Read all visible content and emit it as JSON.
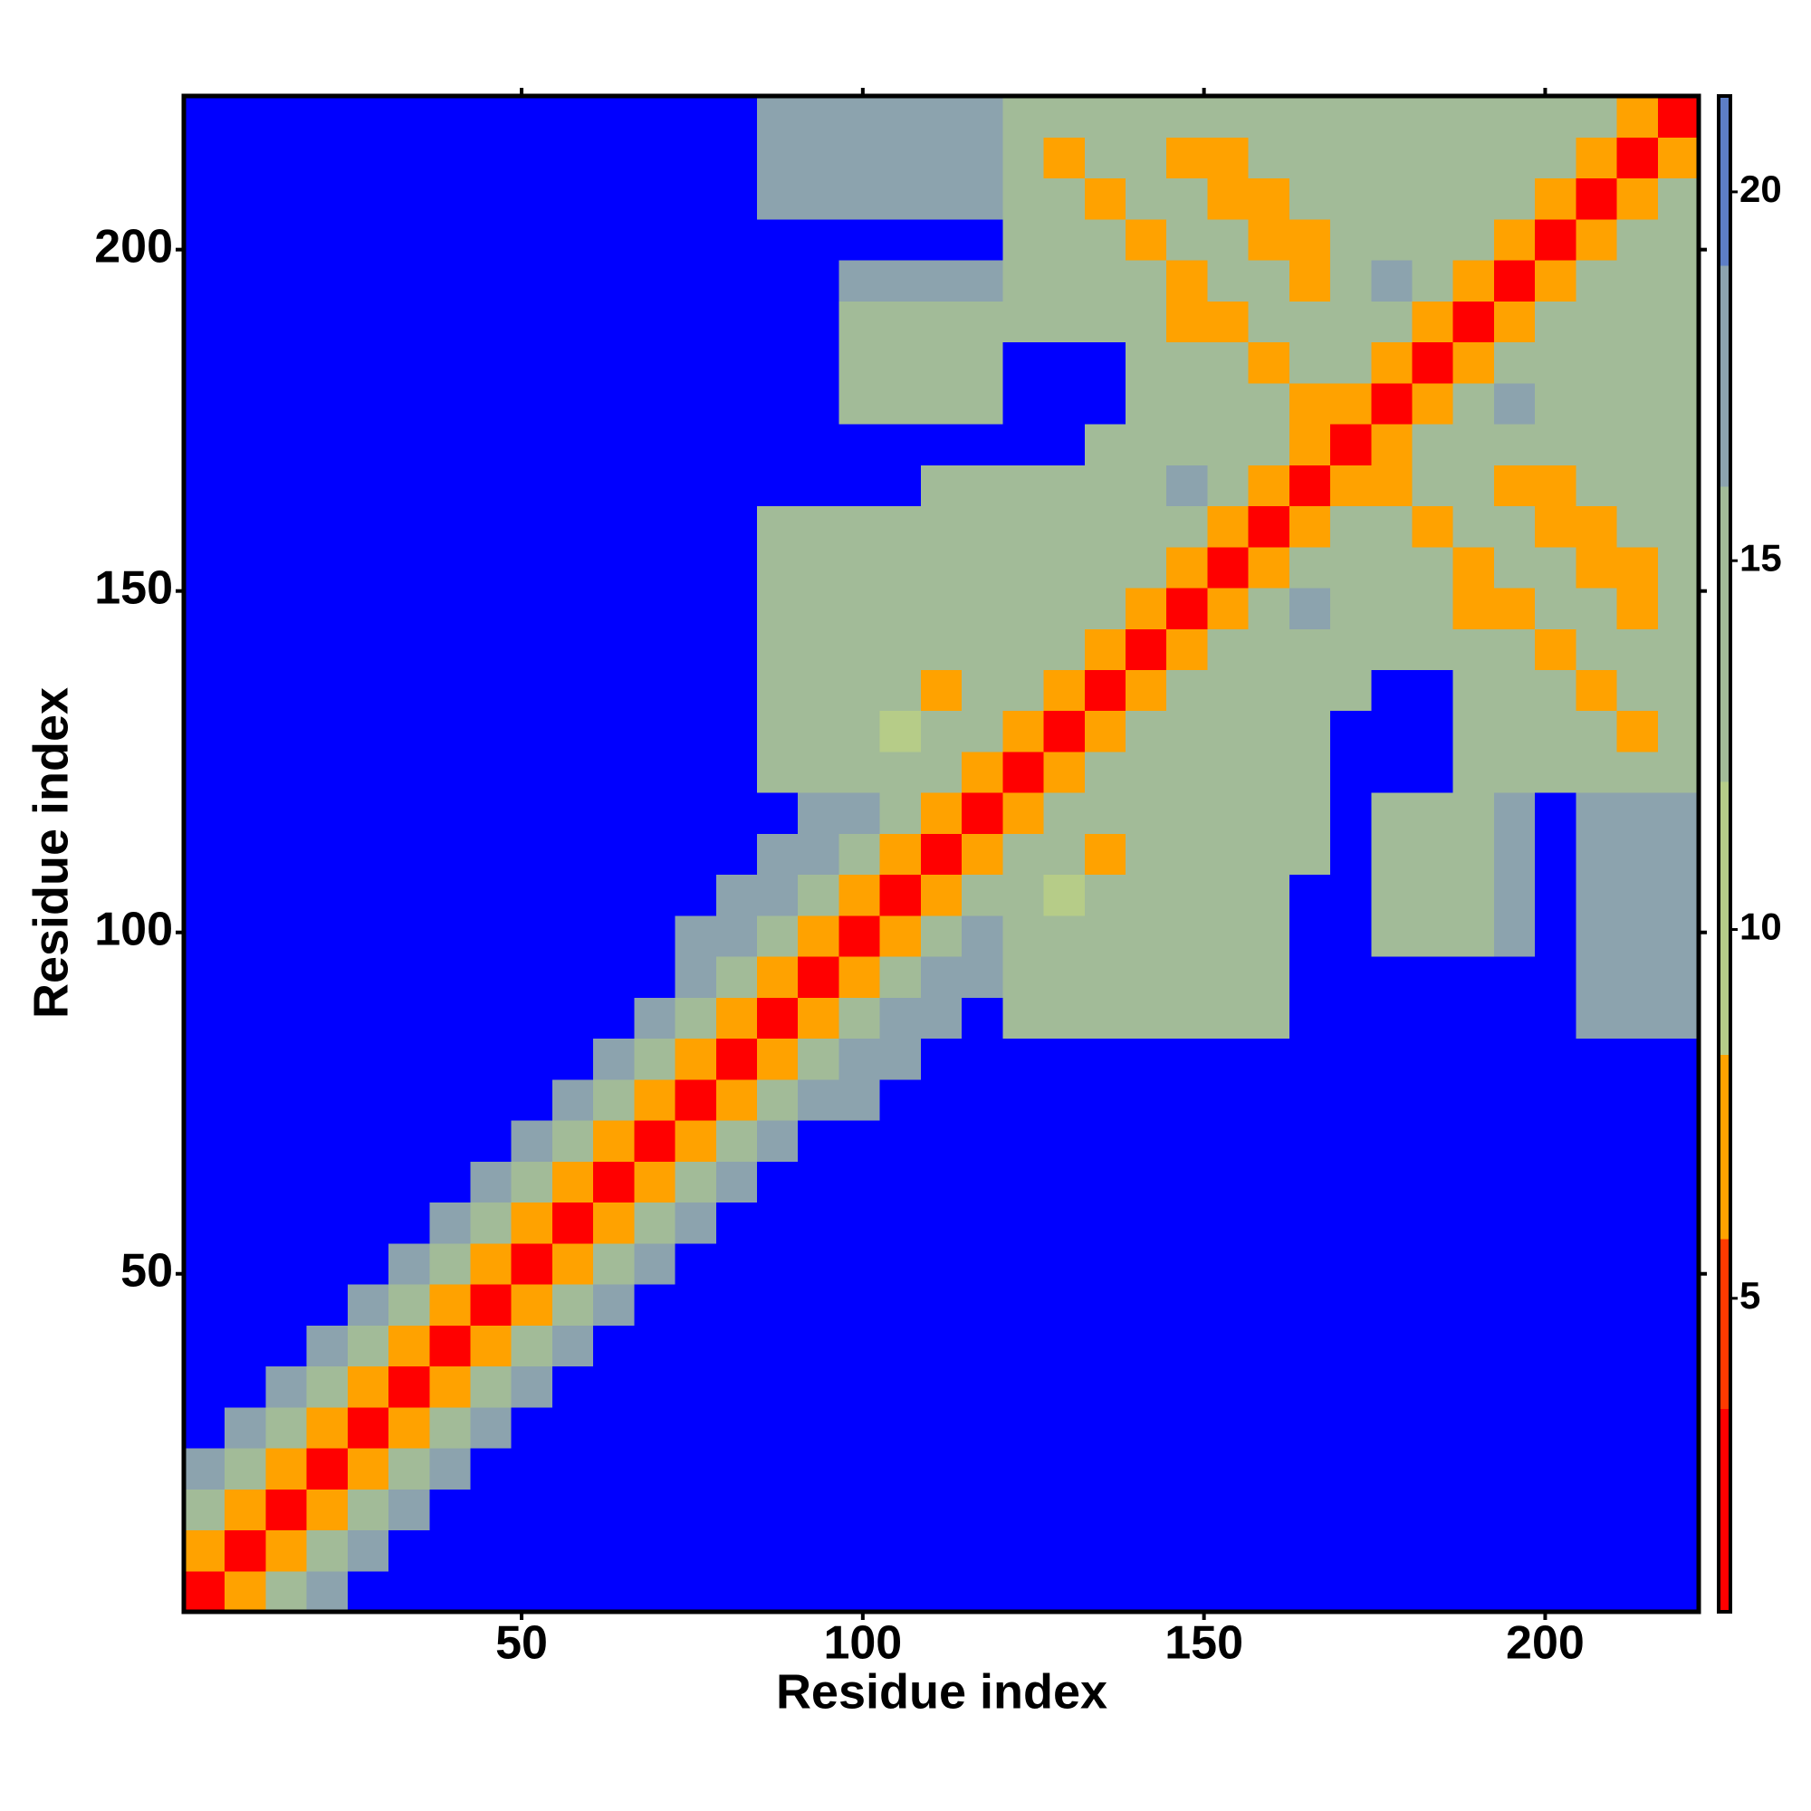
{
  "chart_data": {
    "type": "heatmap",
    "xlabel": "Residue index",
    "ylabel": "Residue index",
    "xlim": [
      0.5,
      222.5
    ],
    "ylim": [
      0.5,
      222.5
    ],
    "xticks": [
      50,
      100,
      150,
      200
    ],
    "yticks": [
      50,
      100,
      150,
      200
    ],
    "zlim": [
      0.75,
      21.3
    ],
    "zticks": [
      5,
      10,
      15,
      20
    ],
    "color_breaks": [
      0.75,
      3.5,
      5.8,
      8.3,
      12,
      16,
      19,
      21.3
    ],
    "colors": [
      "#ff0000",
      "#ff3a00",
      "#ffa200",
      "#b6cc88",
      "#a2bb98",
      "#8ca3ae",
      "#5d7ec6"
    ],
    "over_color": "#0000ff",
    "bin_edges": [
      0.5,
      6.5,
      12.5,
      18.5,
      24.5,
      30.5,
      36.5,
      42.5,
      48.5,
      54.5,
      60.5,
      66.5,
      72.5,
      78.5,
      84.5,
      90.5,
      96.5,
      102.5,
      108.5,
      114.5,
      120.5,
      126.5,
      132.5,
      138.5,
      144.5,
      150.5,
      156.5,
      162.5,
      168.5,
      174.5,
      180.5,
      186.5,
      192.5,
      198.5,
      204.5,
      210.5,
      216.5,
      222.5
    ],
    "z": [
      [
        2,
        7,
        12,
        18,
        25,
        25,
        25,
        25,
        25,
        25,
        25,
        25,
        25,
        25,
        25,
        25,
        25,
        25,
        25,
        25,
        25,
        25,
        25,
        25,
        25,
        25,
        25,
        25,
        25,
        25,
        25,
        25,
        25,
        25,
        25,
        25,
        25
      ],
      [
        7,
        2,
        7,
        12,
        18,
        25,
        25,
        25,
        25,
        25,
        25,
        25,
        25,
        25,
        25,
        25,
        25,
        25,
        25,
        25,
        25,
        25,
        25,
        25,
        25,
        25,
        25,
        25,
        25,
        25,
        25,
        25,
        25,
        25,
        25,
        25,
        25
      ],
      [
        12,
        7,
        2,
        7,
        12,
        18,
        25,
        25,
        25,
        25,
        25,
        25,
        25,
        25,
        25,
        25,
        25,
        25,
        25,
        25,
        25,
        25,
        25,
        25,
        25,
        25,
        25,
        25,
        25,
        25,
        25,
        25,
        25,
        25,
        25,
        25,
        25
      ],
      [
        18,
        12,
        7,
        2,
        7,
        12,
        18,
        25,
        25,
        25,
        25,
        25,
        25,
        25,
        25,
        25,
        25,
        25,
        25,
        25,
        25,
        25,
        25,
        25,
        25,
        25,
        25,
        25,
        25,
        25,
        25,
        25,
        25,
        25,
        25,
        25,
        25
      ],
      [
        25,
        18,
        12,
        7,
        2,
        7,
        12,
        18,
        25,
        25,
        25,
        25,
        25,
        25,
        25,
        25,
        25,
        25,
        25,
        25,
        25,
        25,
        25,
        25,
        25,
        25,
        25,
        25,
        25,
        25,
        25,
        25,
        25,
        25,
        25,
        25,
        25
      ],
      [
        25,
        25,
        18,
        12,
        7,
        2,
        7,
        12,
        18,
        25,
        25,
        25,
        25,
        25,
        25,
        25,
        25,
        25,
        25,
        25,
        25,
        25,
        25,
        25,
        25,
        25,
        25,
        25,
        25,
        25,
        25,
        25,
        25,
        25,
        25,
        25,
        25
      ],
      [
        25,
        25,
        25,
        18,
        12,
        7,
        2,
        7,
        12,
        18,
        25,
        25,
        25,
        25,
        25,
        25,
        25,
        25,
        25,
        25,
        25,
        25,
        25,
        25,
        25,
        25,
        25,
        25,
        25,
        25,
        25,
        25,
        25,
        25,
        25,
        25,
        25
      ],
      [
        25,
        25,
        25,
        25,
        18,
        12,
        7,
        2,
        7,
        12,
        18,
        25,
        25,
        25,
        25,
        25,
        25,
        25,
        25,
        25,
        25,
        25,
        25,
        25,
        25,
        25,
        25,
        25,
        25,
        25,
        25,
        25,
        25,
        25,
        25,
        25,
        25
      ],
      [
        25,
        25,
        25,
        25,
        25,
        18,
        12,
        7,
        2,
        7,
        12,
        18,
        25,
        25,
        25,
        25,
        25,
        25,
        25,
        25,
        25,
        25,
        25,
        25,
        25,
        25,
        25,
        25,
        25,
        25,
        25,
        25,
        25,
        25,
        25,
        25,
        25
      ],
      [
        25,
        25,
        25,
        25,
        25,
        25,
        18,
        12,
        7,
        2,
        7,
        12,
        18,
        25,
        25,
        25,
        25,
        25,
        25,
        25,
        25,
        25,
        25,
        25,
        25,
        25,
        25,
        25,
        25,
        25,
        25,
        25,
        25,
        25,
        25,
        25,
        25
      ],
      [
        25,
        25,
        25,
        25,
        25,
        25,
        25,
        18,
        12,
        7,
        2,
        7,
        12,
        18,
        25,
        25,
        25,
        25,
        25,
        25,
        25,
        25,
        25,
        25,
        25,
        25,
        25,
        25,
        25,
        25,
        25,
        25,
        25,
        25,
        25,
        25,
        25
      ],
      [
        25,
        25,
        25,
        25,
        25,
        25,
        25,
        25,
        18,
        12,
        7,
        2,
        7,
        12,
        18,
        25,
        25,
        25,
        25,
        25,
        25,
        25,
        25,
        25,
        25,
        25,
        25,
        25,
        25,
        25,
        25,
        25,
        25,
        25,
        25,
        25,
        25
      ],
      [
        25,
        25,
        25,
        25,
        25,
        25,
        25,
        25,
        25,
        18,
        12,
        7,
        2,
        7,
        12,
        18,
        16,
        25,
        25,
        25,
        25,
        25,
        25,
        25,
        25,
        25,
        25,
        25,
        25,
        25,
        25,
        25,
        25,
        25,
        25,
        25,
        25
      ],
      [
        25,
        25,
        25,
        25,
        25,
        25,
        25,
        25,
        25,
        25,
        18,
        12,
        7,
        2,
        7,
        12,
        18,
        16,
        25,
        25,
        25,
        25,
        25,
        25,
        25,
        25,
        25,
        25,
        25,
        25,
        25,
        25,
        25,
        25,
        25,
        25,
        25
      ],
      [
        25,
        25,
        25,
        25,
        25,
        25,
        25,
        25,
        25,
        25,
        25,
        18,
        12,
        7,
        2,
        7,
        12,
        18,
        16,
        25,
        12,
        12,
        12,
        12,
        15,
        15,
        15,
        25,
        25,
        25,
        25,
        25,
        25,
        25,
        16,
        16,
        16
      ],
      [
        25,
        25,
        25,
        25,
        25,
        25,
        25,
        25,
        25,
        25,
        25,
        25,
        18,
        12,
        7,
        2,
        7,
        12,
        18,
        16,
        12,
        12,
        12,
        12,
        13,
        13,
        13,
        25,
        25,
        25,
        25,
        25,
        25,
        25,
        16,
        16,
        16
      ],
      [
        25,
        25,
        25,
        25,
        25,
        25,
        25,
        25,
        25,
        25,
        25,
        25,
        16,
        18,
        12,
        7,
        2,
        7,
        12,
        18,
        12,
        12,
        12,
        12,
        13,
        13,
        13,
        25,
        25,
        14,
        14,
        14,
        16,
        25,
        16,
        16,
        16
      ],
      [
        25,
        25,
        25,
        25,
        25,
        25,
        25,
        25,
        25,
        25,
        25,
        25,
        25,
        16,
        18,
        12,
        7,
        2,
        7,
        12,
        12,
        9,
        12,
        12,
        13,
        13,
        13,
        25,
        25,
        14,
        14,
        14,
        16,
        25,
        16,
        16,
        16
      ],
      [
        25,
        25,
        25,
        25,
        25,
        25,
        25,
        25,
        25,
        25,
        25,
        25,
        25,
        25,
        16,
        18,
        12,
        7,
        2,
        7,
        12,
        12,
        8,
        12,
        13,
        13,
        13,
        14,
        25,
        14,
        14,
        14,
        16,
        25,
        16,
        16,
        16
      ],
      [
        25,
        25,
        25,
        25,
        25,
        25,
        25,
        25,
        25,
        25,
        25,
        25,
        25,
        25,
        25,
        16,
        18,
        12,
        7,
        2,
        7,
        12,
        12,
        12,
        13,
        13,
        13,
        14,
        25,
        14,
        14,
        14,
        16,
        25,
        16,
        16,
        16
      ],
      [
        25,
        25,
        25,
        25,
        25,
        25,
        25,
        25,
        25,
        25,
        25,
        25,
        25,
        25,
        12,
        12,
        12,
        12,
        12,
        7,
        2,
        7,
        12,
        12,
        14,
        14,
        14,
        14,
        25,
        25,
        25,
        13,
        13,
        13,
        13,
        13,
        13
      ],
      [
        25,
        25,
        25,
        25,
        25,
        25,
        25,
        25,
        25,
        25,
        25,
        25,
        25,
        25,
        12,
        12,
        12,
        9,
        12,
        12,
        7,
        2,
        7,
        12,
        14,
        14,
        14,
        14,
        25,
        25,
        25,
        13,
        13,
        13,
        13,
        7,
        13
      ],
      [
        25,
        25,
        25,
        25,
        25,
        25,
        25,
        25,
        25,
        25,
        25,
        25,
        25,
        25,
        12,
        12,
        12,
        12,
        8,
        12,
        12,
        7,
        2,
        7,
        12,
        14,
        14,
        14,
        14,
        25,
        25,
        13,
        13,
        13,
        7,
        13,
        13
      ],
      [
        25,
        25,
        25,
        25,
        25,
        25,
        25,
        25,
        25,
        25,
        25,
        25,
        25,
        25,
        12,
        12,
        12,
        12,
        12,
        12,
        12,
        12,
        7,
        2,
        7,
        12,
        14,
        14,
        12,
        12,
        12,
        12,
        12,
        7,
        13,
        13,
        13
      ],
      [
        25,
        25,
        25,
        25,
        25,
        25,
        25,
        25,
        25,
        25,
        25,
        25,
        25,
        25,
        15,
        13,
        13,
        13,
        13,
        13,
        14,
        14,
        12,
        7,
        2,
        7,
        14,
        16,
        12,
        12,
        12,
        7,
        7,
        12,
        12,
        7,
        12
      ],
      [
        25,
        25,
        25,
        25,
        25,
        25,
        25,
        25,
        25,
        25,
        25,
        25,
        25,
        25,
        15,
        13,
        13,
        13,
        13,
        13,
        14,
        14,
        14,
        12,
        7,
        2,
        7,
        14,
        12,
        12,
        12,
        7,
        12,
        12,
        7,
        7,
        12
      ],
      [
        25,
        25,
        25,
        25,
        25,
        25,
        25,
        25,
        25,
        25,
        25,
        25,
        25,
        25,
        15,
        13,
        13,
        13,
        13,
        13,
        14,
        14,
        14,
        14,
        14,
        7,
        2,
        7,
        14,
        12,
        7,
        12,
        12,
        7,
        7,
        12,
        12
      ],
      [
        25,
        25,
        25,
        25,
        25,
        25,
        25,
        25,
        25,
        25,
        25,
        25,
        25,
        25,
        25,
        25,
        25,
        25,
        14,
        14,
        14,
        14,
        14,
        14,
        16,
        14,
        7,
        2,
        7,
        7,
        12,
        12,
        7,
        7,
        12,
        12,
        12
      ],
      [
        25,
        25,
        25,
        25,
        25,
        25,
        25,
        25,
        25,
        25,
        25,
        25,
        25,
        25,
        25,
        25,
        25,
        25,
        25,
        25,
        25,
        25,
        14,
        12,
        12,
        12,
        14,
        7,
        2,
        7,
        14,
        12,
        12,
        12,
        12,
        12,
        12
      ],
      [
        25,
        25,
        25,
        25,
        25,
        25,
        25,
        25,
        25,
        25,
        25,
        25,
        25,
        25,
        25,
        25,
        14,
        14,
        14,
        14,
        25,
        25,
        25,
        12,
        12,
        12,
        12,
        7,
        7,
        2,
        7,
        14,
        16,
        13,
        13,
        13,
        13
      ],
      [
        25,
        25,
        25,
        25,
        25,
        25,
        25,
        25,
        25,
        25,
        25,
        25,
        25,
        25,
        25,
        25,
        14,
        14,
        14,
        14,
        25,
        25,
        25,
        12,
        12,
        12,
        7,
        12,
        14,
        7,
        2,
        7,
        14,
        13,
        13,
        13,
        13
      ],
      [
        25,
        25,
        25,
        25,
        25,
        25,
        25,
        25,
        25,
        25,
        25,
        25,
        25,
        25,
        25,
        25,
        14,
        14,
        14,
        14,
        13,
        13,
        13,
        12,
        7,
        7,
        12,
        12,
        12,
        14,
        7,
        2,
        7,
        14,
        13,
        13,
        13
      ],
      [
        25,
        25,
        25,
        25,
        25,
        25,
        25,
        25,
        25,
        25,
        25,
        25,
        25,
        25,
        25,
        25,
        16,
        16,
        16,
        16,
        13,
        13,
        13,
        12,
        7,
        12,
        12,
        7,
        12,
        16,
        14,
        7,
        2,
        7,
        14,
        13,
        13
      ],
      [
        25,
        25,
        25,
        25,
        25,
        25,
        25,
        25,
        25,
        25,
        25,
        25,
        25,
        25,
        25,
        25,
        25,
        25,
        25,
        25,
        13,
        13,
        13,
        7,
        12,
        12,
        7,
        7,
        12,
        13,
        13,
        14,
        7,
        2,
        7,
        14,
        13
      ],
      [
        25,
        25,
        25,
        25,
        25,
        25,
        25,
        25,
        25,
        25,
        25,
        25,
        25,
        25,
        16,
        16,
        16,
        16,
        16,
        16,
        13,
        13,
        7,
        13,
        12,
        7,
        7,
        12,
        12,
        13,
        13,
        13,
        14,
        7,
        2,
        7,
        14
      ],
      [
        25,
        25,
        25,
        25,
        25,
        25,
        25,
        25,
        25,
        25,
        25,
        25,
        25,
        25,
        16,
        16,
        16,
        16,
        16,
        16,
        13,
        7,
        13,
        13,
        7,
        7,
        12,
        12,
        12,
        13,
        13,
        13,
        13,
        14,
        7,
        2,
        7
      ],
      [
        25,
        25,
        25,
        25,
        25,
        25,
        25,
        25,
        25,
        25,
        25,
        25,
        25,
        25,
        16,
        16,
        16,
        16,
        16,
        16,
        13,
        13,
        13,
        13,
        12,
        12,
        12,
        12,
        12,
        13,
        13,
        13,
        13,
        13,
        14,
        7,
        2
      ]
    ]
  }
}
